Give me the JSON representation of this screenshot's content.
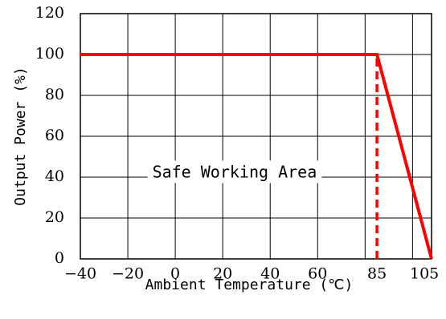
{
  "chart_data": {
    "type": "line",
    "title": "",
    "xlabel": "Ambient Temperature (℃)",
    "ylabel": "Output Power (%)",
    "xlim": [
      -40,
      108
    ],
    "ylim": [
      0,
      120
    ],
    "x_ticks": [
      {
        "value": -40,
        "label": "−40"
      },
      {
        "value": -20,
        "label": "−20"
      },
      {
        "value": 0,
        "label": "0"
      },
      {
        "value": 20,
        "label": "20"
      },
      {
        "value": 40,
        "label": "40"
      },
      {
        "value": 60,
        "label": "60"
      },
      {
        "value": 85,
        "label": "85"
      },
      {
        "value": 105,
        "label": "105"
      }
    ],
    "x_gridlines": [
      -40,
      -20,
      0,
      20,
      40,
      60,
      80,
      100
    ],
    "y_ticks": [
      {
        "value": 0,
        "label": "0"
      },
      {
        "value": 20,
        "label": "20"
      },
      {
        "value": 40,
        "label": "40"
      },
      {
        "value": 60,
        "label": "60"
      },
      {
        "value": 80,
        "label": "80"
      },
      {
        "value": 100,
        "label": "100"
      },
      {
        "value": 120,
        "label": "120"
      }
    ],
    "grid": true,
    "series": [
      {
        "color": "#ff0000",
        "style": "solid",
        "points": [
          [
            -40,
            100
          ],
          [
            85,
            100
          ],
          [
            108,
            0
          ]
        ]
      }
    ],
    "reference_lines": [
      {
        "color": "#ff0000",
        "style": "dashed",
        "x": 85,
        "y_from": 0,
        "y_to": 100
      }
    ],
    "annotation": {
      "text": "Safe Working Area",
      "x": 25,
      "y": 42
    }
  }
}
